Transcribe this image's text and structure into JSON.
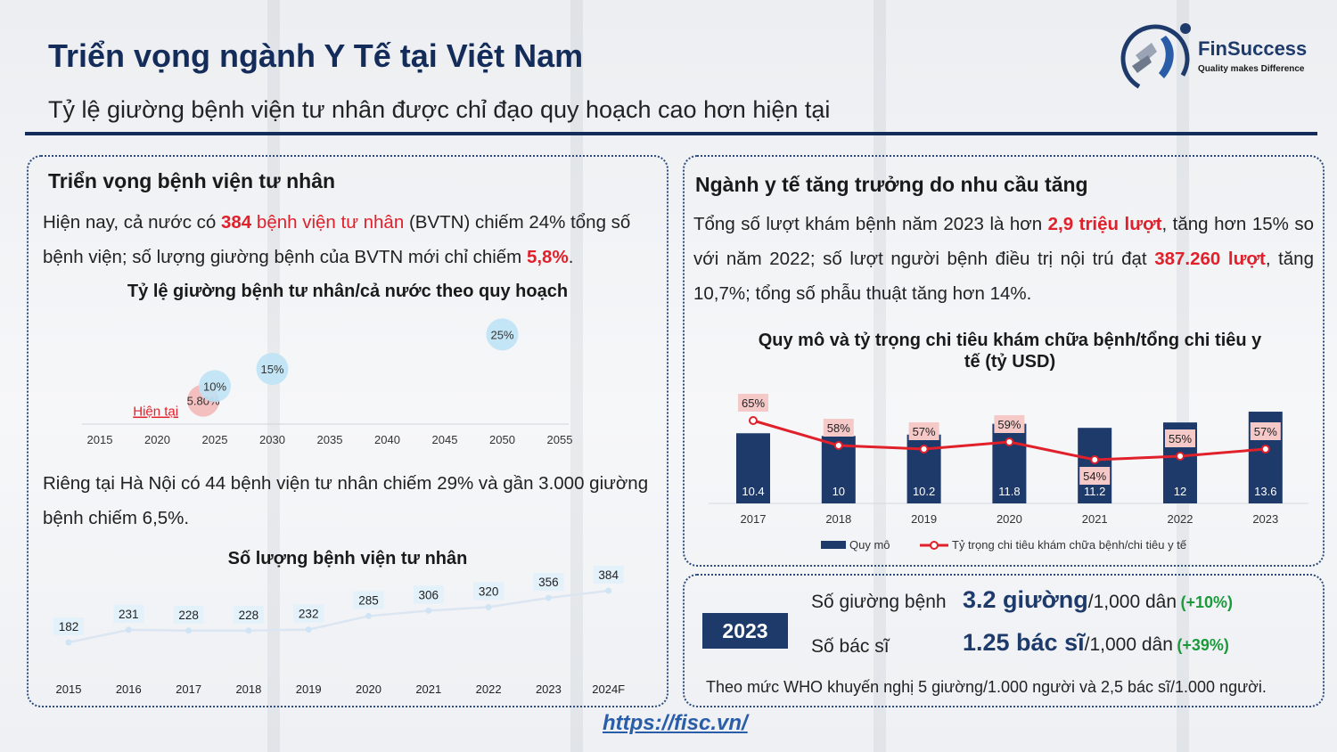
{
  "header": {
    "title": "Triển vọng ngành Y Tế tại Việt Nam",
    "subtitle": "Tỷ lệ giường bệnh viện tư nhân được chỉ đạo quy hoạch cao hơn hiện tại",
    "logo_name": "FinSuccess",
    "logo_tagline": "Quality makes Difference"
  },
  "left": {
    "title": "Triển vọng bệnh viện tư nhân",
    "p1": {
      "a": "Hiện nay, cả nước có ",
      "b": "384",
      "c": " bệnh viện tư nhân",
      "d": " (BVTN) chiếm 24% tổng số bệnh viện; số lượng giường bệnh của BVTN mới chỉ chiếm ",
      "e": "5,8%",
      "f": "."
    },
    "p2": "Riêng tại Hà Nội có 44 bệnh viện tư nhân chiếm 29% và gần 3.000 giường bệnh chiếm 6,5%."
  },
  "right": {
    "title": "Ngành y tế tăng trưởng do nhu cầu tăng",
    "p1": {
      "a": "Tổng số lượt khám bệnh năm 2023 là hơn ",
      "b": "2,9 triệu lượt",
      "c": ", tăng hơn 15% so với năm 2022; số lượt người bệnh điều trị nội trú đạt ",
      "d": "387.260 lượt",
      "e": ", tăng 10,7%; tổng số phẫu thuật tăng hơn 14%."
    }
  },
  "stats": {
    "year": "2023",
    "beds_label": "Số giường bệnh",
    "beds_value": "3.2 giường",
    "beds_unit": "/1,000 dân",
    "beds_change": "(+10%)",
    "doctors_label": "Số bác sĩ",
    "doctors_value": "1.25 bác sĩ",
    "doctors_unit": "/1,000 dân",
    "doctors_change": "(+39%)",
    "note": "Theo mức WHO khuyến nghị 5 giường/1.000 người và 2,5 bác sĩ/1.000 người."
  },
  "footer": {
    "url": "https://fisc.vn/"
  },
  "colors": {
    "navy": "#1d3a6b",
    "red": "#e0202a",
    "bubble": "#bfe3f5",
    "bubble_current": "#f4b8b8"
  },
  "chart_data": [
    {
      "type": "scatter",
      "title": "Tỷ lệ giường bệnh tư nhân/cả nước theo quy hoạch",
      "x_ticks": [
        "2015",
        "2020",
        "2025",
        "2030",
        "2035",
        "2040",
        "2045",
        "2050",
        "2055"
      ],
      "xlim": [
        2015,
        2055
      ],
      "ylim": [
        0,
        30
      ],
      "points": [
        {
          "x": 2024,
          "y": 5.8,
          "label": "5.80%",
          "current": true
        },
        {
          "x": 2025,
          "y": 10,
          "label": "10%",
          "current": false
        },
        {
          "x": 2030,
          "y": 15,
          "label": "15%",
          "current": false
        },
        {
          "x": 2050,
          "y": 25,
          "label": "25%",
          "current": false
        }
      ],
      "annotation": "Hiện tại"
    },
    {
      "type": "line",
      "title": "Số lượng bệnh viện tư nhân",
      "categories": [
        "2015",
        "2016",
        "2017",
        "2018",
        "2019",
        "2020",
        "2021",
        "2022",
        "2023",
        "2024F"
      ],
      "values": [
        182,
        231,
        228,
        228,
        232,
        285,
        306,
        320,
        356,
        384
      ],
      "ylim": [
        150,
        400
      ]
    },
    {
      "type": "bar",
      "title": "Quy mô và tỷ trọng chi tiêu khám chữa bệnh/tổng chi tiêu y tế (tỷ USD)",
      "categories": [
        "2017",
        "2018",
        "2019",
        "2020",
        "2021",
        "2022",
        "2023"
      ],
      "series": [
        {
          "name": "Quy mô",
          "type": "bar",
          "values": [
            10.4,
            10,
            10.2,
            11.8,
            11.2,
            12,
            13.6
          ]
        },
        {
          "name": "Tỷ trọng chi tiêu khám chữa bệnh/chi tiêu y tế",
          "type": "line",
          "values": [
            65,
            58,
            57,
            59,
            54,
            55,
            57
          ],
          "labels": [
            "65%",
            "58%",
            "57%",
            "59%",
            "54%",
            "55%",
            "57%"
          ]
        }
      ],
      "bar_ylim": [
        0,
        14
      ],
      "line_ylim": [
        45,
        70
      ],
      "legend": [
        "Quy mô",
        "Tỷ trọng chi tiêu khám chữa bệnh/chi tiêu y tế"
      ]
    }
  ]
}
